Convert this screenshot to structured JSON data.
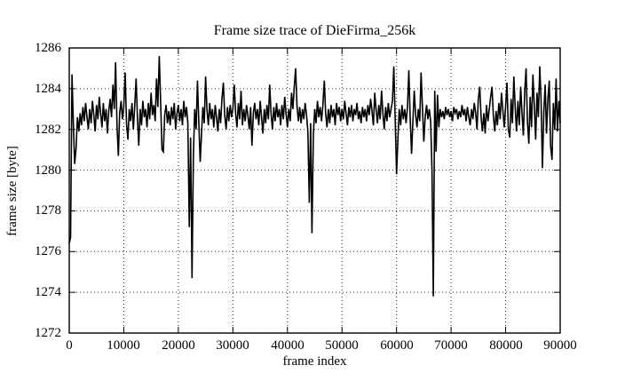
{
  "figure": {
    "background": "#ffffff",
    "line_color": "#000000",
    "grid_color": "#2a2a2a",
    "border_color": "#000000"
  },
  "chart_data": {
    "type": "line",
    "title": "Frame size trace of DieFirma_256k",
    "xlabel": "frame index",
    "ylabel": "frame size [byte]",
    "xlim": [
      0,
      90000
    ],
    "ylim": [
      1272,
      1286
    ],
    "xticks": [
      0,
      10000,
      20000,
      30000,
      40000,
      50000,
      60000,
      70000,
      80000,
      90000
    ],
    "xtick_labels": [
      "0",
      "10000",
      "20000",
      "30000",
      "40000",
      "50000",
      "60000",
      "70000",
      "80000",
      "90000"
    ],
    "yticks": [
      1272,
      1274,
      1276,
      1278,
      1280,
      1282,
      1284,
      1286
    ],
    "ytick_labels": [
      "1272",
      "1274",
      "1276",
      "1278",
      "1280",
      "1282",
      "1284",
      "1286"
    ],
    "grid": true,
    "legend_position": "none",
    "series": [
      {
        "name": "frame size trace",
        "x_start": 0,
        "x_step": 250,
        "values": [
          1276.4,
          1276.7,
          1284.7,
          1282.3,
          1280.3,
          1281.1,
          1282.6,
          1281.9,
          1282.8,
          1282.2,
          1283.1,
          1282.4,
          1283.3,
          1282.6,
          1282.0,
          1283.0,
          1282.3,
          1283.4,
          1282.7,
          1281.9,
          1283.2,
          1282.5,
          1283.6,
          1282.8,
          1282.1,
          1283.3,
          1282.4,
          1283.0,
          1281.8,
          1282.9,
          1283.5,
          1282.6,
          1284.2,
          1283.0,
          1285.3,
          1282.2,
          1280.7,
          1282.8,
          1283.4,
          1282.5,
          1283.1,
          1284.8,
          1282.3,
          1281.5,
          1283.0,
          1282.4,
          1283.3,
          1282.0,
          1283.1,
          1284.5,
          1282.6,
          1281.2,
          1283.0,
          1282.2,
          1283.4,
          1282.6,
          1283.0,
          1282.1,
          1283.3,
          1282.5,
          1283.8,
          1282.7,
          1283.2,
          1282.4,
          1284.5,
          1283.1,
          1285.6,
          1283.4,
          1281.0,
          1280.9,
          1282.7,
          1283.2,
          1282.3,
          1282.9,
          1282.2,
          1283.1,
          1282.5,
          1283.3,
          1282.0,
          1282.8,
          1283.2,
          1282.4,
          1283.0,
          1282.2,
          1283.4,
          1282.6,
          1283.1,
          1282.3,
          1277.2,
          1281.6,
          1274.7,
          1280.6,
          1283.0,
          1282.0,
          1284.4,
          1282.4,
          1280.4,
          1281.8,
          1283.1,
          1282.3,
          1284.6,
          1283.0,
          1282.2,
          1283.3,
          1282.5,
          1283.0,
          1282.1,
          1283.2,
          1282.6,
          1281.9,
          1283.0,
          1282.3,
          1283.5,
          1284.3,
          1282.7,
          1282.0,
          1283.1,
          1282.4,
          1283.2,
          1282.6,
          1283.0,
          1284.2,
          1282.8,
          1282.1,
          1283.3,
          1282.5,
          1283.9,
          1282.2,
          1283.0,
          1282.4,
          1283.2,
          1282.7,
          1282.0,
          1283.1,
          1281.2,
          1282.8,
          1283.3,
          1282.5,
          1283.0,
          1282.2,
          1283.4,
          1282.6,
          1281.8,
          1283.0,
          1282.3,
          1283.2,
          1282.5,
          1284.2,
          1282.8,
          1282.0,
          1283.1,
          1282.4,
          1283.3,
          1282.6,
          1283.0,
          1282.2,
          1283.2,
          1282.5,
          1283.6,
          1282.8,
          1282.1,
          1283.0,
          1282.4,
          1283.8,
          1283.0,
          1284.1,
          1285.0,
          1283.2,
          1282.4,
          1283.1,
          1282.3,
          1283.0,
          1282.5,
          1283.3,
          1282.7,
          1281.9,
          1278.4,
          1282.3,
          1276.9,
          1281.8,
          1283.0,
          1282.3,
          1283.4,
          1282.6,
          1283.1,
          1282.4,
          1283.2,
          1284.4,
          1282.8,
          1282.1,
          1283.0,
          1282.3,
          1283.2,
          1282.6,
          1283.0,
          1282.2,
          1283.3,
          1282.7,
          1283.1,
          1282.4,
          1283.0,
          1282.5,
          1283.4,
          1282.8,
          1282.2,
          1283.1,
          1282.6,
          1283.2,
          1282.4,
          1283.0,
          1282.7,
          1283.3,
          1282.5,
          1282.9,
          1282.3,
          1283.1,
          1282.6,
          1283.0,
          1282.4,
          1283.2,
          1282.7,
          1283.5,
          1282.9,
          1282.2,
          1283.8,
          1283.0,
          1282.3,
          1283.2,
          1282.5,
          1283.9,
          1282.8,
          1282.0,
          1283.1,
          1282.4,
          1283.3,
          1282.6,
          1283.0,
          1283.4,
          1285.1,
          1282.6,
          1279.8,
          1281.5,
          1283.0,
          1282.2,
          1283.2,
          1282.5,
          1283.0,
          1282.3,
          1283.1,
          1284.9,
          1282.6,
          1280.8,
          1282.4,
          1283.9,
          1282.7,
          1282.1,
          1283.0,
          1282.4,
          1284.8,
          1283.0,
          1281.4,
          1282.6,
          1283.2,
          1282.5,
          1283.0,
          1282.4,
          1280.0,
          1273.8,
          1283.9,
          1280.9,
          1283.7,
          1282.1,
          1283.0,
          1282.6,
          1282.9,
          1282.5,
          1283.1,
          1282.7,
          1283.0,
          1282.6,
          1282.9,
          1282.4,
          1283.1,
          1282.8,
          1283.0,
          1282.5,
          1282.9,
          1282.6,
          1283.2,
          1282.7,
          1283.0,
          1282.4,
          1283.1,
          1282.6,
          1282.2,
          1283.0,
          1282.5,
          1283.3,
          1282.8,
          1282.0,
          1283.5,
          1284.1,
          1282.6,
          1281.9,
          1282.8,
          1281.8,
          1283.2,
          1282.4,
          1283.0,
          1283.6,
          1284.1,
          1282.7,
          1281.9,
          1282.9,
          1282.2,
          1283.3,
          1282.5,
          1283.8,
          1282.9,
          1282.1,
          1283.2,
          1284.3,
          1282.0,
          1281.6,
          1283.5,
          1282.3,
          1284.6,
          1283.1,
          1281.9,
          1283.4,
          1282.2,
          1284.1,
          1282.8,
          1281.7,
          1283.9,
          1285.0,
          1282.4,
          1281.3,
          1283.6,
          1282.1,
          1284.7,
          1283.2,
          1281.5,
          1283.8,
          1282.6,
          1285.1,
          1283.4,
          1280.1,
          1282.9,
          1284.2,
          1281.8,
          1283.5,
          1284.4,
          1281.2,
          1280.5,
          1283.3,
          1282.0,
          1284.5,
          1281.9,
          1283.4,
          1282.3
        ]
      }
    ]
  }
}
